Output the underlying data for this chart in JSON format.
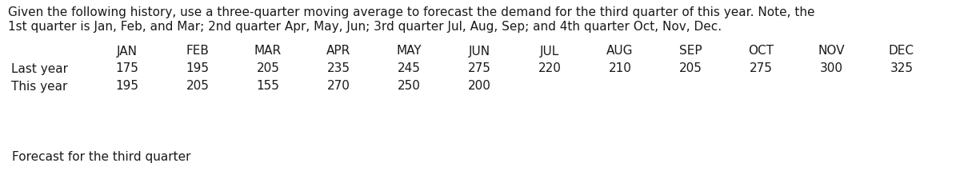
{
  "description_line1": "Given the following history, use a three-quarter moving average to forecast the demand for the third quarter of this year. Note, the",
  "description_line2": "1st quarter is Jan, Feb, and Mar; 2nd quarter Apr, May, Jun; 3rd quarter Jul, Aug, Sep; and 4th quarter Oct, Nov, Dec.",
  "header": [
    "JAN",
    "FEB",
    "MAR",
    "APR",
    "MAY",
    "JUN",
    "JUL",
    "AUG",
    "SEP",
    "OCT",
    "NOV",
    "DEC"
  ],
  "last_year_label": "Last year",
  "this_year_label": "This year",
  "last_year": [
    "175",
    "195",
    "205",
    "235",
    "245",
    "275",
    "220",
    "210",
    "205",
    "275",
    "300",
    "325"
  ],
  "this_year": [
    "195",
    "205",
    "155",
    "270",
    "250",
    "200",
    "",
    "",
    "",
    "",
    "",
    ""
  ],
  "forecast_label": "Forecast for the third quarter",
  "table_header_bg": "#cdd5e0",
  "table_row_bg": "#e8edf4",
  "table_empty_row_bg": "#d8dfe8",
  "forecast_label_bg": "#92b4d4",
  "forecast_box_border": "#4472c4",
  "text_color": "#1a1a1a",
  "desc_fontsize": 11.0,
  "table_fontsize": 11.0,
  "forecast_fontsize": 11.0
}
